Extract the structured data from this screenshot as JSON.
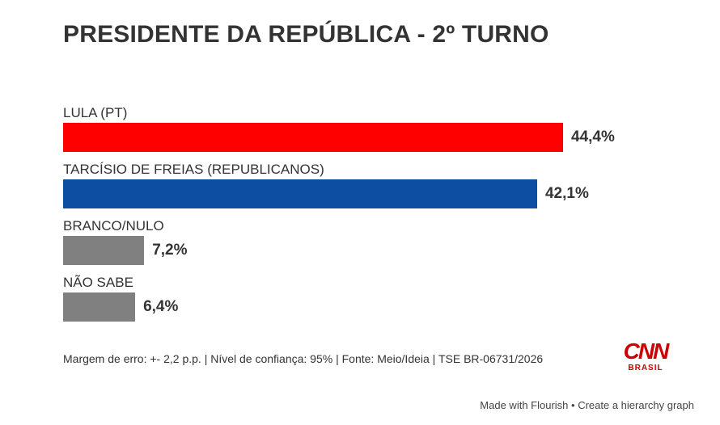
{
  "chart_data": {
    "type": "bar",
    "orientation": "horizontal",
    "title": "PRESIDENTE DA REPÚBLICA - 2º TURNO",
    "categories": [
      "LULA (PT)",
      "TARCÍSIO DE FREIAS (REPUBLICANOS)",
      "BRANCO/NULO",
      "NÃO SABE"
    ],
    "values": [
      44.4,
      42.1,
      7.2,
      6.4
    ],
    "value_labels": [
      "44,4%",
      "42,1%",
      "7,2%",
      "6,4%"
    ],
    "colors": [
      "#ff0000",
      "#0d4ea3",
      "#808080",
      "#808080"
    ],
    "xlim": [
      0,
      50
    ]
  },
  "footnote": "Margem de erro: +- 2,2 p.p. | Nível de confiança: 95% | Fonte: Meio/Ideia | TSE BR-06731/2026",
  "logo": {
    "mark": "CNN",
    "sub": "BRASIL"
  },
  "credit": {
    "made_with": "Made with Flourish",
    "separator": " • ",
    "link": "Create a hierarchy graph"
  }
}
